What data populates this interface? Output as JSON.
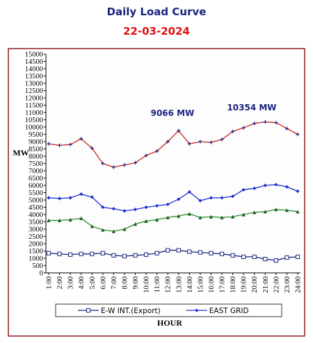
{
  "chart_data": {
    "type": "line",
    "title": "Daily Load Curve",
    "subtitle": "22-03-2024",
    "y_label": "MW",
    "x_label": "HOUR",
    "annotations": [
      "9066 MW",
      "10354 MW"
    ],
    "categories": [
      "1:00",
      "2:00",
      "3:00",
      "4:00",
      "5:00",
      "6:00",
      "7:00",
      "8:00",
      "9:00",
      "10:00",
      "11:00",
      "12:00",
      "13:00",
      "14:00",
      "15:00",
      "16:00",
      "17:00",
      "18:00",
      "19:00",
      "20:00",
      "21:00",
      "22:00",
      "23:00",
      "24:00"
    ],
    "series": [
      {
        "color": "#d02020",
        "marker_color": "#1a237e",
        "marker": "plus",
        "values": [
          8850,
          8750,
          8800,
          9200,
          8550,
          7500,
          7250,
          7400,
          7550,
          8050,
          8350,
          9000,
          9750,
          8850,
          9000,
          8950,
          9150,
          9700,
          9950,
          10250,
          10354,
          10300,
          9900,
          9500
        ]
      },
      {
        "name": "EAST GRID",
        "color": "#1c2fd0",
        "marker_color": "#1c2fd0",
        "marker": "diamond",
        "values": [
          5150,
          5100,
          5150,
          5400,
          5200,
          4500,
          4400,
          4250,
          4350,
          4500,
          4600,
          4700,
          5050,
          5550,
          4950,
          5150,
          5150,
          5250,
          5700,
          5800,
          6000,
          6050,
          5900,
          5600
        ]
      },
      {
        "color": "#2e8b2e",
        "marker_color": "#1b5e20",
        "marker": "triangle",
        "values": [
          3600,
          3600,
          3650,
          3750,
          3200,
          2950,
          2850,
          3000,
          3350,
          3550,
          3650,
          3800,
          3900,
          4050,
          3800,
          3850,
          3800,
          3850,
          4000,
          4150,
          4200,
          4350,
          4300,
          4200
        ]
      },
      {
        "name": "E-W INT.(Export)",
        "color": "#1a237e",
        "marker_color": "#1a237e",
        "marker": "square",
        "values": [
          1350,
          1300,
          1250,
          1300,
          1300,
          1350,
          1200,
          1150,
          1200,
          1250,
          1350,
          1550,
          1550,
          1450,
          1400,
          1350,
          1300,
          1200,
          1100,
          1100,
          950,
          850,
          1050,
          1100
        ]
      }
    ],
    "ylim": [
      0,
      15000
    ],
    "yticks": [
      0,
      500,
      1000,
      1500,
      2000,
      2500,
      3000,
      3500,
      4000,
      4500,
      5000,
      5500,
      6000,
      6500,
      7000,
      7500,
      8000,
      8500,
      9000,
      9500,
      10000,
      10500,
      11000,
      11500,
      12000,
      12500,
      13000,
      13500,
      14000,
      14500,
      15000
    ],
    "legend": "bottom"
  }
}
